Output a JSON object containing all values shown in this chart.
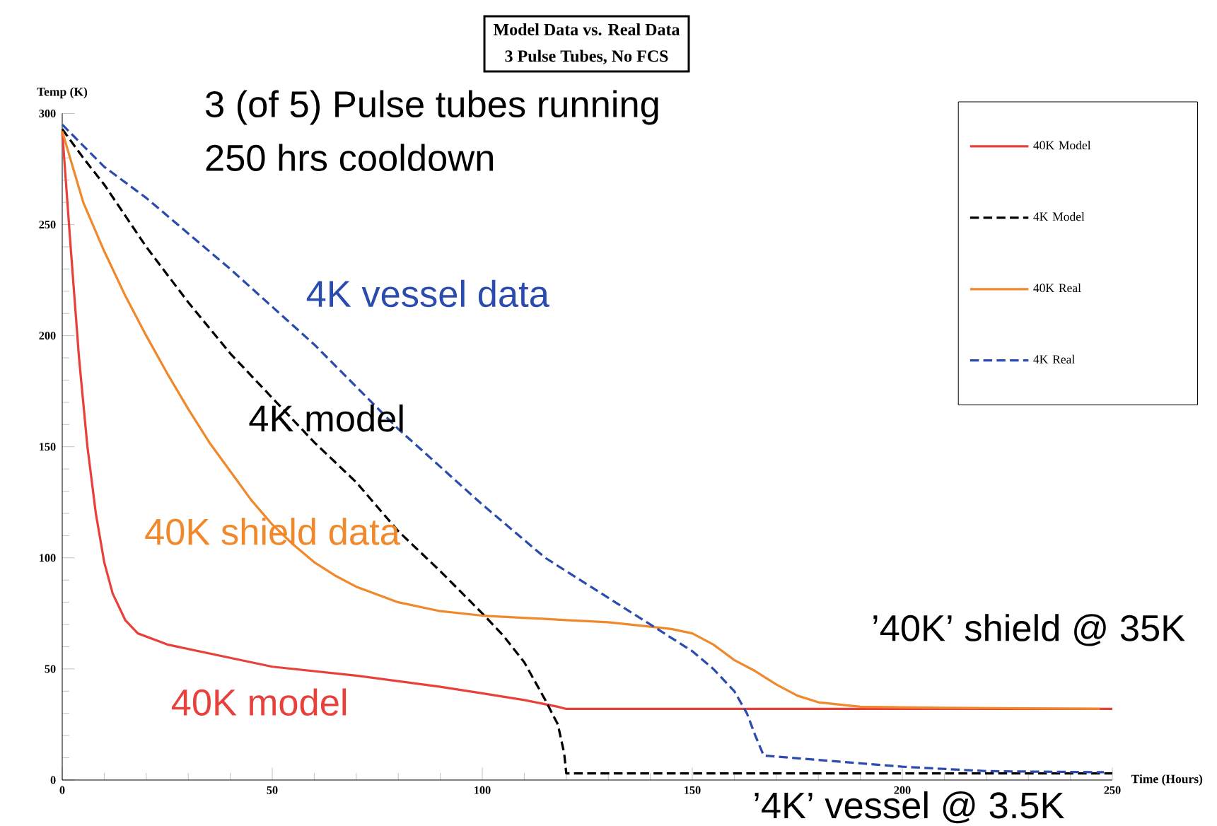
{
  "chart_data": {
    "type": "line",
    "title": "Model Data vs. Real Data",
    "subtitle": "3 Pulse Tubes, No FCS",
    "xlabel": "Time (Hours)",
    "ylabel": "Temp (K)",
    "xlim": [
      0,
      250
    ],
    "ylim": [
      0,
      300
    ],
    "xticks": [
      0,
      50,
      100,
      150,
      200,
      250
    ],
    "yticks": [
      0,
      50,
      100,
      150,
      200,
      250,
      300
    ],
    "grid": false,
    "legend": "top right",
    "marker": "none",
    "series": [
      {
        "name": "40K Model",
        "color": "#e8413c",
        "line_style": "solid",
        "x": [
          0,
          2,
          4,
          6,
          8,
          10,
          12,
          15,
          18,
          25,
          35,
          50,
          70,
          90,
          100,
          110,
          118,
          120,
          250
        ],
        "values": [
          292,
          240,
          190,
          150,
          120,
          98,
          84,
          72,
          66,
          61,
          57,
          51,
          47,
          42,
          39,
          36,
          33,
          32,
          32
        ]
      },
      {
        "name": "4K Model",
        "color": "#000000",
        "line_style": "dashed",
        "x": [
          0,
          5,
          10,
          20,
          30,
          40,
          50,
          60,
          70,
          80,
          90,
          100,
          105,
          110,
          115,
          118,
          119.5,
          120,
          250
        ],
        "values": [
          293,
          280,
          268,
          240,
          215,
          192,
          172,
          152,
          134,
          112,
          94,
          75,
          65,
          53,
          36,
          25,
          12,
          3,
          3
        ]
      },
      {
        "name": "40K Real",
        "color": "#f0892c",
        "line_style": "solid",
        "x": [
          0,
          5,
          10,
          15,
          20,
          25,
          30,
          35,
          40,
          45,
          50,
          55,
          60,
          65,
          70,
          80,
          90,
          100,
          120,
          130,
          140,
          145,
          150,
          155,
          160,
          165,
          170,
          175,
          180,
          190,
          210,
          247
        ],
        "values": [
          292,
          260,
          238,
          218,
          200,
          183,
          167,
          152,
          139,
          126,
          115,
          106,
          98,
          92,
          87,
          80,
          76,
          74,
          72,
          71,
          69,
          68,
          66,
          61,
          54,
          49,
          43,
          38,
          35,
          33,
          32.5,
          32
        ]
      },
      {
        "name": "4K Real",
        "color": "#2b4cae",
        "line_style": "dashed",
        "x": [
          0,
          10,
          20,
          40,
          60,
          80,
          100,
          115,
          130,
          140,
          150,
          155,
          160,
          163,
          165,
          167,
          180,
          200,
          220,
          248
        ],
        "values": [
          295,
          276,
          262,
          230,
          196,
          158,
          124,
          100,
          82,
          70,
          58,
          50,
          40,
          30,
          20,
          11,
          9,
          6,
          4,
          3.5
        ]
      }
    ],
    "annotations": [
      "3 (of 5) Pulse tubes running",
      "250 hrs cooldown",
      "4K vessel data",
      "4K model",
      "40K shield data",
      "40K model",
      "’40K’ shield @ 35K",
      "’4K’ vessel @ 3.5K"
    ]
  }
}
